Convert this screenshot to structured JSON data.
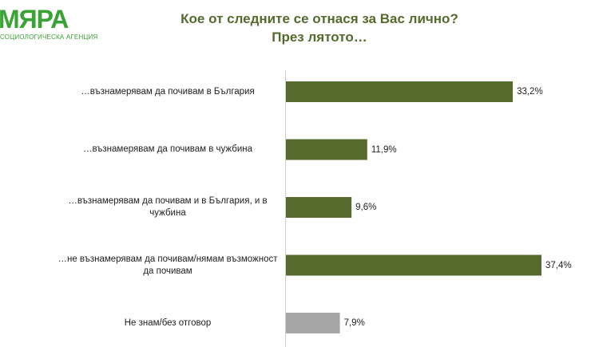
{
  "logo": {
    "name": "МЯРА",
    "subtitle": "СОЦИОЛОГИЧЕСКА АГЕНЦИЯ"
  },
  "chart_data": {
    "type": "bar",
    "orientation": "horizontal",
    "title": "Кое от следните се отнася за Вас лично?",
    "subtitle": "През лятото…",
    "categories": [
      "…възнамерявам да почивам в България",
      "…възнамерявам да почивам в чужбина",
      "…възнамерявам да почивам и в България, и в чужбина",
      "…не възнамерявам да почивам/нямам възможност да почивам",
      "Не знам/без отговор"
    ],
    "values": [
      33.2,
      11.9,
      9.6,
      37.4,
      7.9
    ],
    "value_labels": [
      "33,2%",
      "11,9%",
      "9,6%",
      "37,4%",
      "7,9%"
    ],
    "unit": "%",
    "bar_colors": [
      "#566a2d",
      "#566a2d",
      "#566a2d",
      "#566a2d",
      "#a6a6a6"
    ],
    "xlim": [
      0,
      37.4
    ],
    "grid": false,
    "legend": "none"
  }
}
